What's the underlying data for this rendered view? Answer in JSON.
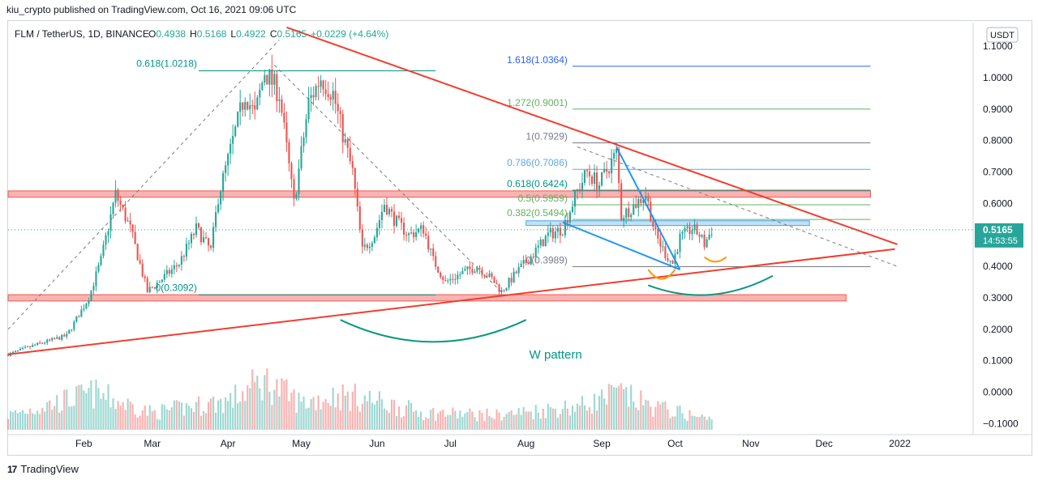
{
  "publisher": "kiu_crypto published on TradingView.com, Oct 16, 2021 09:06 UTC",
  "footer": "TradingView",
  "logo_icon": "17",
  "currency_badge": "USDT",
  "colors": {
    "up": "#26a69a",
    "down": "#ef5350",
    "trend": "#f23d2e",
    "zone_fill": "#f6a7a7",
    "blue_zone": "#b9dcf3",
    "wedge": "#2196f3",
    "teal_text": "#009688",
    "fib_green": "#64b15f",
    "fib_blue": "#2962ff",
    "fib_gray": "#787b86",
    "arc_teal": "#089981",
    "arc_orange": "#ff9800",
    "price_tag": "#26a69a"
  },
  "chart_data": {
    "type": "candlestick",
    "symbol": "FLM / TetherUS, 1D, BINANCE",
    "ohlc": {
      "o_label": "O",
      "o": "0.4938",
      "h_label": "H",
      "h": "0.5168",
      "l_label": "L",
      "l": "0.4922",
      "c_label": "C",
      "c": "0.5165",
      "change": "+0.0229 (+4.64%)"
    },
    "last_price": "0.5165",
    "countdown": "14:53:55",
    "y_ticks": [
      "1.1000",
      "1.0000",
      "0.9000",
      "0.8000",
      "0.7000",
      "0.6000",
      "0.5000",
      "0.4000",
      "0.3000",
      "0.2000",
      "0.1000",
      "0.0000",
      "−0.1000"
    ],
    "y_tick_values": [
      1.1,
      1.0,
      0.9,
      0.8,
      0.7,
      0.6,
      0.5,
      0.4,
      0.3,
      0.2,
      0.1,
      0.0,
      -0.1
    ],
    "ylim": [
      -0.135,
      1.175
    ],
    "x_ticks": [
      "Feb",
      "Mar",
      "Apr",
      "May",
      "Jun",
      "Jul",
      "Aug",
      "Sep",
      "Oct",
      "Nov",
      "Dec",
      "2022"
    ],
    "x_tick_dates": [
      "2021-02-01",
      "2021-03-01",
      "2021-04-01",
      "2021-05-01",
      "2021-06-01",
      "2021-07-01",
      "2021-08-01",
      "2021-09-01",
      "2021-10-01",
      "2021-11-01",
      "2021-12-01",
      "2022-01-01"
    ],
    "xlim": [
      "2021-01-01",
      "2022-01-31"
    ],
    "price_path": [
      [
        "2021-01-01",
        0.12
      ],
      [
        "2021-01-12",
        0.15
      ],
      [
        "2021-01-25",
        0.18
      ],
      [
        "2021-02-03",
        0.3
      ],
      [
        "2021-02-08",
        0.42
      ],
      [
        "2021-02-14",
        0.63
      ],
      [
        "2021-02-20",
        0.52
      ],
      [
        "2021-02-27",
        0.32
      ],
      [
        "2021-03-05",
        0.36
      ],
      [
        "2021-03-12",
        0.41
      ],
      [
        "2021-03-19",
        0.52
      ],
      [
        "2021-03-25",
        0.45
      ],
      [
        "2021-03-28",
        0.62
      ],
      [
        "2021-04-03",
        0.8
      ],
      [
        "2021-04-08",
        0.95
      ],
      [
        "2021-04-12",
        0.88
      ],
      [
        "2021-04-16",
        1.02
      ],
      [
        "2021-04-22",
        0.95
      ],
      [
        "2021-04-28",
        0.6
      ],
      [
        "2021-05-04",
        0.92
      ],
      [
        "2021-05-09",
        1.0
      ],
      [
        "2021-05-14",
        0.95
      ],
      [
        "2021-05-18",
        0.82
      ],
      [
        "2021-05-22",
        0.7
      ],
      [
        "2021-05-26",
        0.45
      ],
      [
        "2021-05-31",
        0.5
      ],
      [
        "2021-06-04",
        0.6
      ],
      [
        "2021-06-08",
        0.55
      ],
      [
        "2021-06-14",
        0.5
      ],
      [
        "2021-06-20",
        0.52
      ],
      [
        "2021-06-24",
        0.42
      ],
      [
        "2021-06-29",
        0.35
      ],
      [
        "2021-07-06",
        0.38
      ],
      [
        "2021-07-12",
        0.4
      ],
      [
        "2021-07-18",
        0.36
      ],
      [
        "2021-07-22",
        0.32
      ],
      [
        "2021-07-28",
        0.38
      ],
      [
        "2021-08-04",
        0.44
      ],
      [
        "2021-08-10",
        0.5
      ],
      [
        "2021-08-16",
        0.52
      ],
      [
        "2021-08-22",
        0.64
      ],
      [
        "2021-08-26",
        0.7
      ],
      [
        "2021-08-31",
        0.66
      ],
      [
        "2021-09-04",
        0.72
      ],
      [
        "2021-09-07",
        0.76
      ],
      [
        "2021-09-09",
        0.56
      ],
      [
        "2021-09-15",
        0.6
      ],
      [
        "2021-09-19",
        0.63
      ],
      [
        "2021-09-23",
        0.5
      ],
      [
        "2021-09-27",
        0.44
      ],
      [
        "2021-09-30",
        0.41
      ],
      [
        "2021-10-03",
        0.49
      ],
      [
        "2021-10-08",
        0.52
      ],
      [
        "2021-10-11",
        0.5
      ],
      [
        "2021-10-13",
        0.47
      ],
      [
        "2021-10-16",
        0.5165
      ]
    ],
    "volume_visual": "histogram at bottom of pane, green on up days and red on down days, highest around mid-April",
    "volume_path": [
      [
        "2021-01-01",
        0.3
      ],
      [
        "2021-02-05",
        0.75
      ],
      [
        "2021-02-14",
        0.6
      ],
      [
        "2021-03-01",
        0.35
      ],
      [
        "2021-04-02",
        0.6
      ],
      [
        "2021-04-10",
        0.85
      ],
      [
        "2021-04-16",
        1.0
      ],
      [
        "2021-05-01",
        0.55
      ],
      [
        "2021-05-15",
        0.7
      ],
      [
        "2021-05-26",
        0.65
      ],
      [
        "2021-06-20",
        0.35
      ],
      [
        "2021-07-20",
        0.3
      ],
      [
        "2021-08-25",
        0.5
      ],
      [
        "2021-09-08",
        0.75
      ],
      [
        "2021-09-20",
        0.5
      ],
      [
        "2021-10-16",
        0.2
      ]
    ],
    "fib_levels": [
      {
        "label": "1.618(1.0364)",
        "value": 1.0364,
        "color": "#2962ff"
      },
      {
        "label": "1.272(0.9001)",
        "value": 0.9001,
        "color": "#64b15f"
      },
      {
        "label": "1(0.7929)",
        "value": 0.7929,
        "color": "#787b86"
      },
      {
        "label": "0.786(0.7086)",
        "value": 0.7086,
        "color": "#5aa9e6"
      },
      {
        "label": "0.618(0.6424)",
        "value": 0.6424,
        "color": "#009688"
      },
      {
        "label": "0.5(0.5959)",
        "value": 0.5959,
        "color": "#64b15f"
      },
      {
        "label": "0.382(0.5494)",
        "value": 0.5494,
        "color": "#64b15f"
      },
      {
        "label": "0(0.3989)",
        "value": 0.3989,
        "color": "#787b86"
      }
    ],
    "fib_range": [
      "2021-08-20",
      "2021-12-20"
    ],
    "fib_label_x": "2021-08-18",
    "old_fib_levels": [
      {
        "label": "0.618(1.0218)",
        "value": 1.0218,
        "from": "2021-03-20",
        "to": "2021-06-25"
      },
      {
        "label": "0(0.3092)",
        "value": 0.3092,
        "from": "2021-03-20",
        "to": "2021-06-25"
      }
    ],
    "zones": [
      {
        "from": "2021-01-01",
        "to": "2021-12-20",
        "top": 0.64,
        "bottom": 0.62,
        "style": "red"
      },
      {
        "from": "2021-01-01",
        "to": "2021-12-10",
        "top": 0.31,
        "bottom": 0.29,
        "style": "red"
      },
      {
        "from": "2021-08-01",
        "to": "2021-11-25",
        "top": 0.545,
        "bottom": 0.53,
        "style": "blue"
      }
    ],
    "trendlines": [
      {
        "from": [
          "2021-04-25",
          1.16
        ],
        "to": [
          "2021-12-31",
          0.47
        ],
        "style": "trend"
      },
      {
        "from": [
          "2021-01-01",
          0.12
        ],
        "to": [
          "2021-12-30",
          0.455
        ],
        "style": "trend"
      },
      {
        "from": [
          "2021-09-07",
          0.78
        ],
        "to": [
          "2021-10-03",
          0.39
        ],
        "style": "wedge"
      },
      {
        "from": [
          "2021-08-16",
          0.54
        ],
        "to": [
          "2021-10-03",
          0.39
        ],
        "style": "wedge"
      },
      {
        "from": [
          "2021-01-01",
          0.2
        ],
        "to": [
          "2021-04-22",
          1.12
        ],
        "style": "dashed"
      },
      {
        "from": [
          "2021-04-20",
          1.04
        ],
        "to": [
          "2021-07-23",
          0.31
        ],
        "style": "dashed"
      },
      {
        "from": [
          "2021-08-22",
          0.78
        ],
        "to": [
          "2021-12-31",
          0.4
        ],
        "style": "dashed"
      }
    ],
    "arcs": [
      {
        "from": [
          "2021-05-17",
          0.23
        ],
        "to": [
          "2021-08-01",
          0.23
        ],
        "bottom": 0.16,
        "color": "#089981",
        "width": 2
      },
      {
        "from": [
          "2021-09-20",
          0.34
        ],
        "to": [
          "2021-11-10",
          0.37
        ],
        "bottom": 0.31,
        "color": "#089981",
        "width": 2
      },
      {
        "from": [
          "2021-09-20",
          0.39
        ],
        "to": [
          "2021-10-01",
          0.39
        ],
        "bottom": 0.36,
        "color": "#ff9800",
        "width": 2
      },
      {
        "from": [
          "2021-10-13",
          0.43
        ],
        "to": [
          "2021-10-22",
          0.43
        ],
        "bottom": 0.415,
        "color": "#ff9800",
        "width": 2
      }
    ],
    "annotation": "W pattern",
    "annotation_at": [
      "2021-08-01",
      0.12
    ]
  }
}
